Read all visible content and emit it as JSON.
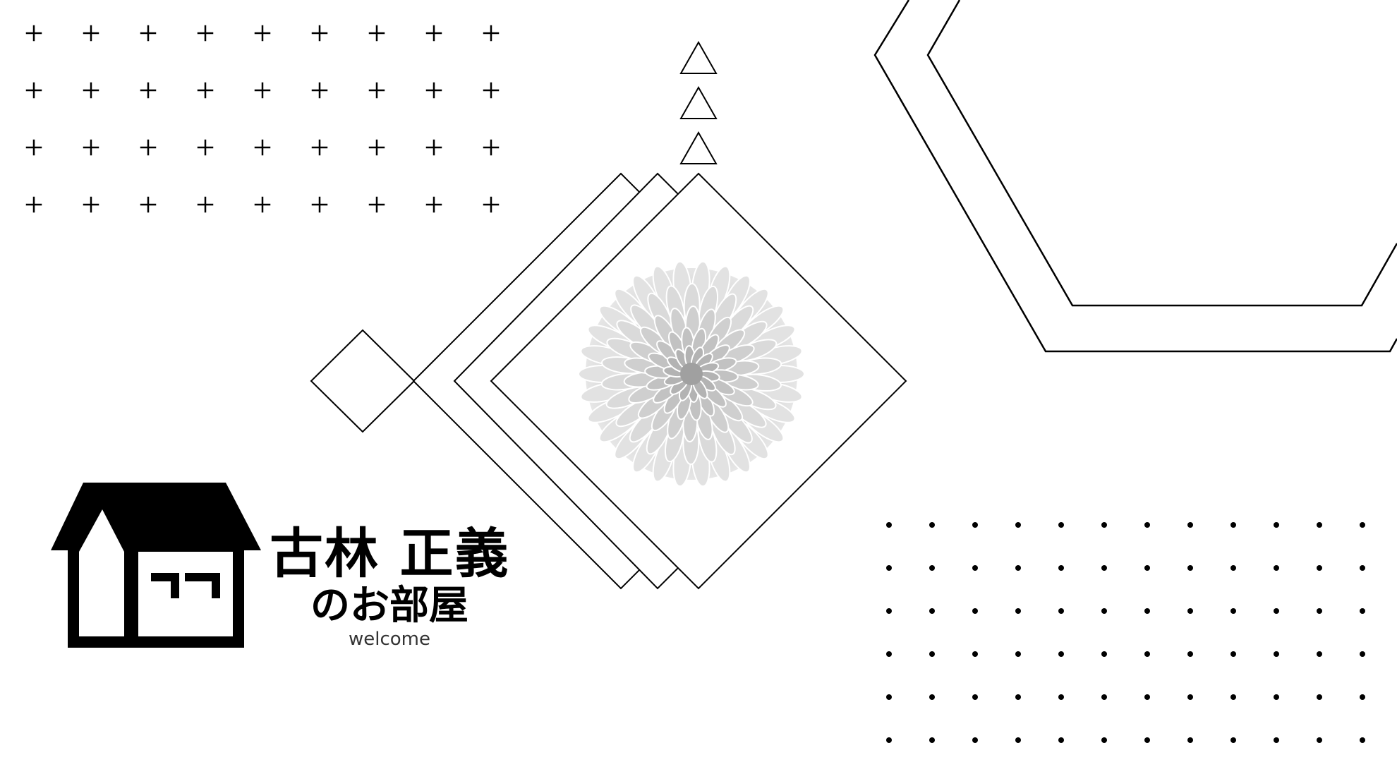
{
  "card": {
    "name": "古林 正義",
    "subtitle": "のお部屋",
    "welcome": "welcome"
  },
  "icons": {
    "house": "house-icon",
    "flower": "chrysanthemum-icon"
  },
  "colors": {
    "background": "#ffffff",
    "ink": "#000000",
    "flower_petal": "#d8d8d8",
    "flower_shadow": "#a8a8a8"
  }
}
